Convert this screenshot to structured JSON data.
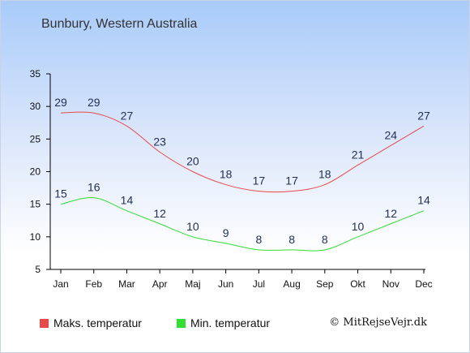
{
  "header": {
    "title": "Bunbury, Western Australia"
  },
  "legend": {
    "max_label": "Maks. temperatur",
    "min_label": "Min. temperatur"
  },
  "credit": "© MitRejseVejr.dk",
  "colors": {
    "max": "#e84a4a",
    "min": "#33dd33",
    "axis": "#000000"
  },
  "chart_data": {
    "type": "line",
    "categories": [
      "Jan",
      "Feb",
      "Mar",
      "Apr",
      "Maj",
      "Jun",
      "Jul",
      "Aug",
      "Sep",
      "Okt",
      "Nov",
      "Dec"
    ],
    "series": [
      {
        "name": "Maks. temperatur",
        "values": [
          29,
          29,
          27,
          23,
          20,
          18,
          17,
          17,
          18,
          21,
          24,
          27
        ]
      },
      {
        "name": "Min. temperatur",
        "values": [
          15,
          16,
          14,
          12,
          10,
          9,
          8,
          8,
          8,
          10,
          12,
          14
        ]
      }
    ],
    "yticks": [
      5,
      10,
      15,
      20,
      25,
      30,
      35
    ],
    "ylim": [
      5,
      35
    ],
    "grid": false,
    "legend_position": "bottom"
  }
}
